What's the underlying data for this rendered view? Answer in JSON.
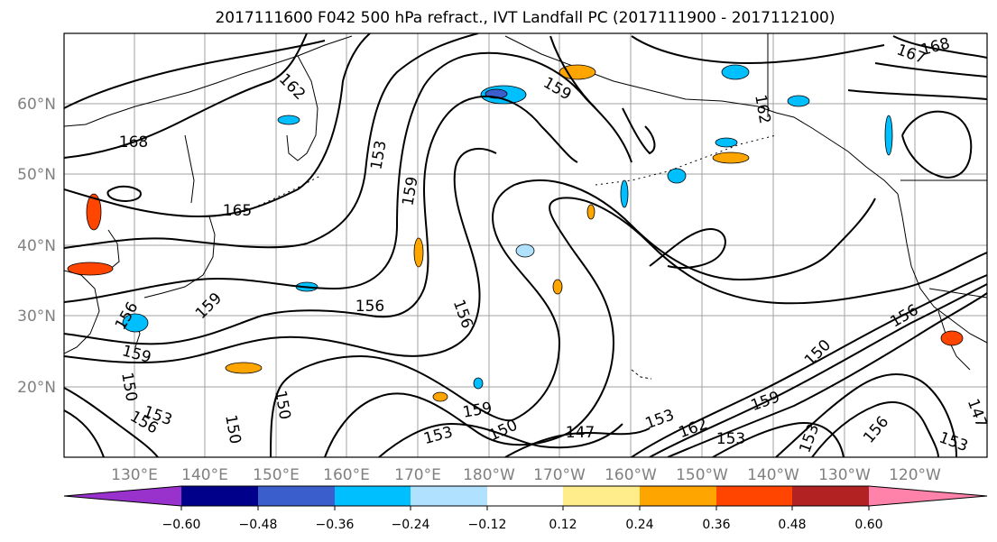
{
  "figure": {
    "title": "2017111600 F042 500 hPa refract., IVT Landfall PC (2017111900 - 2017112100)"
  },
  "map": {
    "lat_labels": [
      "60°N",
      "50°N",
      "40°N",
      "30°N",
      "20°N"
    ],
    "lon_labels": [
      "130°E",
      "140°E",
      "150°E",
      "160°E",
      "170°E",
      "180°W",
      "170°W",
      "160°W",
      "150°W",
      "140°W",
      "130°W",
      "120°W"
    ],
    "contour_labels": [
      {
        "text": "168"
      },
      {
        "text": "165"
      },
      {
        "text": "162"
      },
      {
        "text": "159"
      },
      {
        "text": "153"
      },
      {
        "text": "159"
      },
      {
        "text": "156"
      },
      {
        "text": "156"
      },
      {
        "text": "159"
      },
      {
        "text": "156"
      },
      {
        "text": "159"
      },
      {
        "text": "150"
      },
      {
        "text": "153"
      },
      {
        "text": "156"
      },
      {
        "text": "150"
      },
      {
        "text": "150"
      },
      {
        "text": "153"
      },
      {
        "text": "150"
      },
      {
        "text": "147"
      },
      {
        "text": "153"
      },
      {
        "text": "159"
      },
      {
        "text": "162"
      },
      {
        "text": "162"
      },
      {
        "text": "168"
      },
      {
        "text": "167"
      },
      {
        "text": "156"
      },
      {
        "text": "150"
      },
      {
        "text": "153"
      },
      {
        "text": "156"
      },
      {
        "text": "153"
      },
      {
        "text": "147"
      },
      {
        "text": "153"
      },
      {
        "text": "159"
      }
    ]
  },
  "colorbar": {
    "tick_labels": [
      "−0.60",
      "−0.48",
      "−0.36",
      "−0.24",
      "−0.12",
      "0.12",
      "0.24",
      "0.36",
      "0.48",
      "0.60"
    ],
    "colors": [
      "#9932cc",
      "#00008b",
      "#3a5fcd",
      "#00bfff",
      "#b0e2ff",
      "#ffffff",
      "#ffec8b",
      "#ffa500",
      "#ff4500",
      "#b22222",
      "#ff82ab"
    ]
  },
  "accent_colors": {
    "negative": "#00bfff",
    "positive": "#ffa500",
    "contour": "#000000",
    "grid": "#a0a0a0"
  }
}
